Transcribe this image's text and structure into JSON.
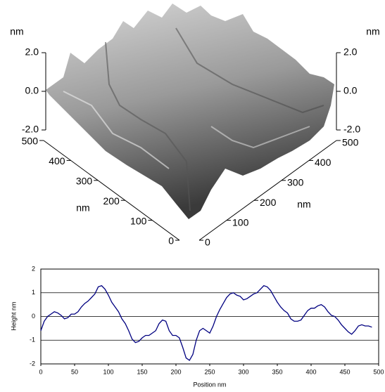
{
  "chart_data": [
    {
      "type": "surface3d",
      "zlabel": "nm",
      "xlabel": "nm",
      "ylabel": "nm",
      "zlim": [
        -2,
        2
      ],
      "zticks": [
        {
          "value": -2,
          "label": "-2.0"
        },
        {
          "value": 0,
          "label": "0.0"
        },
        {
          "value": 2,
          "label": "2.0"
        }
      ],
      "xlim": [
        0,
        500
      ],
      "xticks": [
        0,
        100,
        200,
        300,
        400,
        500
      ],
      "ylim": [
        0,
        500
      ],
      "yticks": [
        0,
        100,
        200,
        300,
        400,
        500
      ]
    },
    {
      "type": "line",
      "xlabel": "Position nm",
      "ylabel": "Height nm",
      "x": [
        0,
        5,
        10,
        15,
        20,
        25,
        30,
        35,
        40,
        45,
        50,
        55,
        60,
        65,
        70,
        75,
        80,
        85,
        90,
        95,
        100,
        105,
        110,
        115,
        120,
        125,
        130,
        135,
        140,
        145,
        150,
        155,
        160,
        165,
        170,
        175,
        180,
        185,
        190,
        195,
        200,
        205,
        210,
        215,
        220,
        225,
        230,
        235,
        240,
        245,
        250,
        255,
        260,
        265,
        270,
        275,
        280,
        285,
        290,
        295,
        300,
        305,
        310,
        315,
        320,
        325,
        330,
        335,
        340,
        345,
        350,
        355,
        360,
        365,
        370,
        375,
        380,
        385,
        390,
        395,
        400,
        405,
        410,
        415,
        420,
        425,
        430,
        435,
        440,
        445,
        450,
        455,
        460,
        465,
        470,
        475,
        480,
        485,
        490
      ],
      "values": [
        -0.6,
        -0.2,
        0.0,
        0.1,
        0.2,
        0.15,
        0.05,
        -0.1,
        -0.05,
        0.1,
        0.1,
        0.2,
        0.4,
        0.55,
        0.65,
        0.8,
        0.95,
        1.25,
        1.3,
        1.15,
        0.9,
        0.6,
        0.4,
        0.2,
        -0.1,
        -0.3,
        -0.6,
        -0.95,
        -1.1,
        -1.05,
        -0.9,
        -0.8,
        -0.8,
        -0.7,
        -0.6,
        -0.3,
        -0.15,
        -0.2,
        -0.6,
        -0.8,
        -0.8,
        -0.9,
        -1.3,
        -1.75,
        -1.85,
        -1.6,
        -1.0,
        -0.6,
        -0.5,
        -0.6,
        -0.7,
        -0.4,
        0.0,
        0.3,
        0.55,
        0.8,
        0.95,
        1.0,
        0.9,
        0.85,
        0.7,
        0.75,
        0.85,
        0.95,
        1.0,
        1.15,
        1.3,
        1.25,
        1.1,
        0.85,
        0.6,
        0.4,
        0.25,
        0.15,
        -0.1,
        -0.2,
        -0.2,
        -0.15,
        0.05,
        0.25,
        0.35,
        0.35,
        0.45,
        0.5,
        0.4,
        0.2,
        0.05,
        0.0,
        -0.15,
        -0.35,
        -0.5,
        -0.65,
        -0.75,
        -0.6,
        -0.4,
        -0.35,
        -0.4,
        -0.4,
        -0.45
      ],
      "color": "#000080",
      "xlim": [
        0,
        500
      ],
      "xticks": [
        0,
        50,
        100,
        150,
        200,
        250,
        300,
        350,
        400,
        450,
        500
      ],
      "ylim": [
        -2,
        2
      ],
      "yticks": [
        -2,
        -1,
        0,
        1,
        2
      ],
      "grid": true
    }
  ]
}
